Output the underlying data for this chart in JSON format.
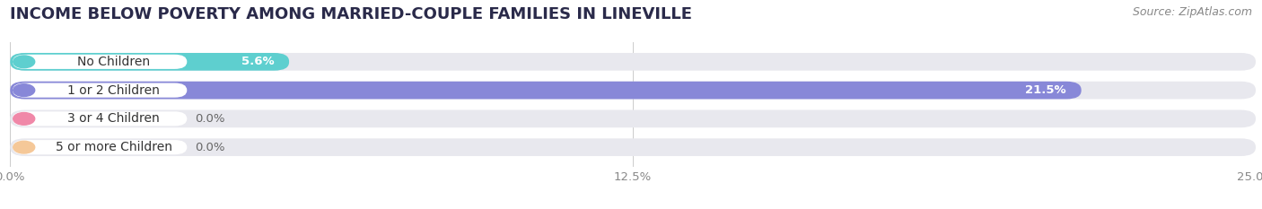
{
  "title": "INCOME BELOW POVERTY AMONG MARRIED-COUPLE FAMILIES IN LINEVILLE",
  "source": "Source: ZipAtlas.com",
  "categories": [
    "No Children",
    "1 or 2 Children",
    "3 or 4 Children",
    "5 or more Children"
  ],
  "values": [
    5.6,
    21.5,
    0.0,
    0.0
  ],
  "bar_colors": [
    "#5ecfcf",
    "#8888d8",
    "#f088a8",
    "#f5c898"
  ],
  "xlim_max": 25.0,
  "xticks": [
    0.0,
    12.5,
    25.0
  ],
  "xtick_labels": [
    "0.0%",
    "12.5%",
    "25.0%"
  ],
  "bar_height": 0.62,
  "bg_color": "#ffffff",
  "bar_bg_color": "#e8e8ee",
  "title_fontsize": 13,
  "label_fontsize": 10,
  "value_fontsize": 9.5,
  "source_fontsize": 9,
  "title_color": "#2a2a4a",
  "source_color": "#888888",
  "label_text_color": "#333333",
  "value_text_color_inside": "#ffffff",
  "value_text_color_outside": "#666666"
}
